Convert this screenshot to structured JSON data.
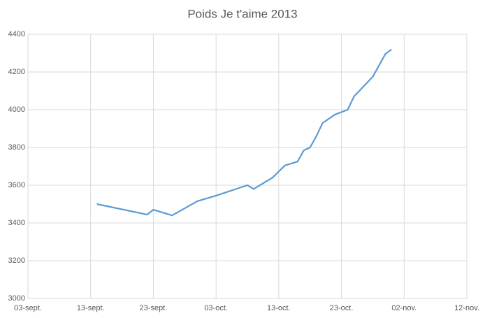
{
  "chart_data": {
    "type": "line",
    "title": "Poids Je t'aime 2013",
    "x": [
      "09-14",
      "09-22",
      "09-23",
      "09-26",
      "09-30",
      "10-03",
      "10-08",
      "10-09",
      "10-12",
      "10-14",
      "10-16",
      "10-17",
      "10-18",
      "10-19",
      "10-20",
      "10-22",
      "10-24",
      "10-25",
      "10-28",
      "10-30",
      "10-31"
    ],
    "series": [
      {
        "name": "Poids",
        "color": "#5b9bd5",
        "values": [
          3500,
          3444,
          3470,
          3440,
          3515,
          3545,
          3600,
          3580,
          3640,
          3705,
          3725,
          3785,
          3800,
          3860,
          3930,
          3975,
          4000,
          4070,
          4175,
          4295,
          4320
        ]
      }
    ],
    "xlim": [
      "09-03",
      "11-12"
    ],
    "xticks": [
      {
        "value": "09-03",
        "label": "03-sept."
      },
      {
        "value": "09-13",
        "label": "13-sept."
      },
      {
        "value": "09-23",
        "label": "23-sept."
      },
      {
        "value": "10-03",
        "label": "03-oct."
      },
      {
        "value": "10-13",
        "label": "13-oct."
      },
      {
        "value": "10-23",
        "label": "23-oct."
      },
      {
        "value": "11-02",
        "label": "02-nov."
      },
      {
        "value": "11-12",
        "label": "12-nov."
      }
    ],
    "ylim": [
      3000,
      4400
    ],
    "yticks": [
      3000,
      3200,
      3400,
      3600,
      3800,
      4000,
      4200,
      4400
    ],
    "grid": true
  }
}
